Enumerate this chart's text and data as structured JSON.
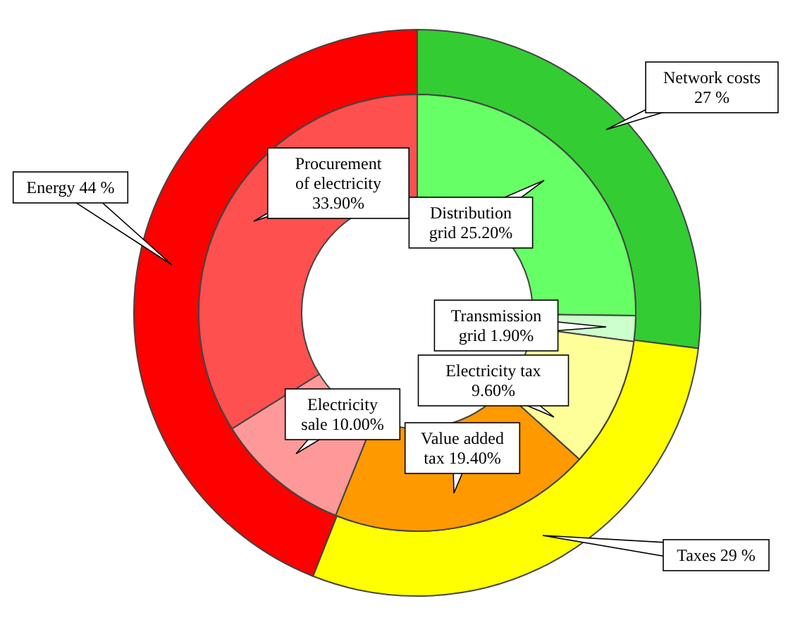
{
  "chart_data": [
    {
      "type": "donut",
      "categories": [
        "Network costs",
        "Taxes",
        "Energy"
      ],
      "values": [
        27,
        29,
        44
      ],
      "colors": [
        "#33cc33",
        "#ffff00",
        "#ff0000"
      ],
      "value_labels": [
        "27 %",
        "29 %",
        "44 %"
      ]
    },
    {
      "type": "donut",
      "categories": [
        "Distribution grid",
        "Transmission grid",
        "Electricity tax",
        "Value added tax",
        "Electricity sale",
        "Procurement of electricity"
      ],
      "values": [
        25.2,
        1.9,
        9.6,
        19.4,
        10,
        33.9
      ],
      "colors": [
        "#66ff66",
        "#ccffcc",
        "#ffff99",
        "#ff9900",
        "#ff9999",
        "#ff5050"
      ],
      "value_labels": [
        "25.20%",
        "1.90%",
        "9.60%",
        "19.40%",
        "10.00%",
        "33.90%"
      ]
    }
  ]
}
